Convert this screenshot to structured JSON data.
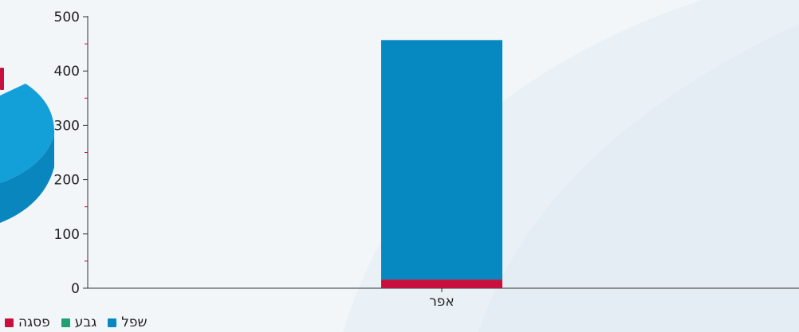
{
  "chart_data": {
    "type": "bar",
    "stacked": true,
    "categories": [
      "אפר"
    ],
    "series": [
      {
        "name": "פסגה",
        "color": "#c8103e",
        "values": [
          16
        ]
      },
      {
        "name": "גבע",
        "color": "#1fa173",
        "values": [
          0
        ]
      },
      {
        "name": "שפל",
        "color": "#0689c0",
        "values": [
          441
        ]
      }
    ],
    "y_ticks": [
      "0",
      "100",
      "200",
      "300",
      "400",
      "500"
    ],
    "ylim": [
      0,
      500
    ],
    "grid": false,
    "legend_position": "bottom-left"
  },
  "decor": {
    "pie_top_color": "#13a0d8",
    "pie_side_color": "#0a86bf",
    "pie_red_color": "#c8103e"
  }
}
